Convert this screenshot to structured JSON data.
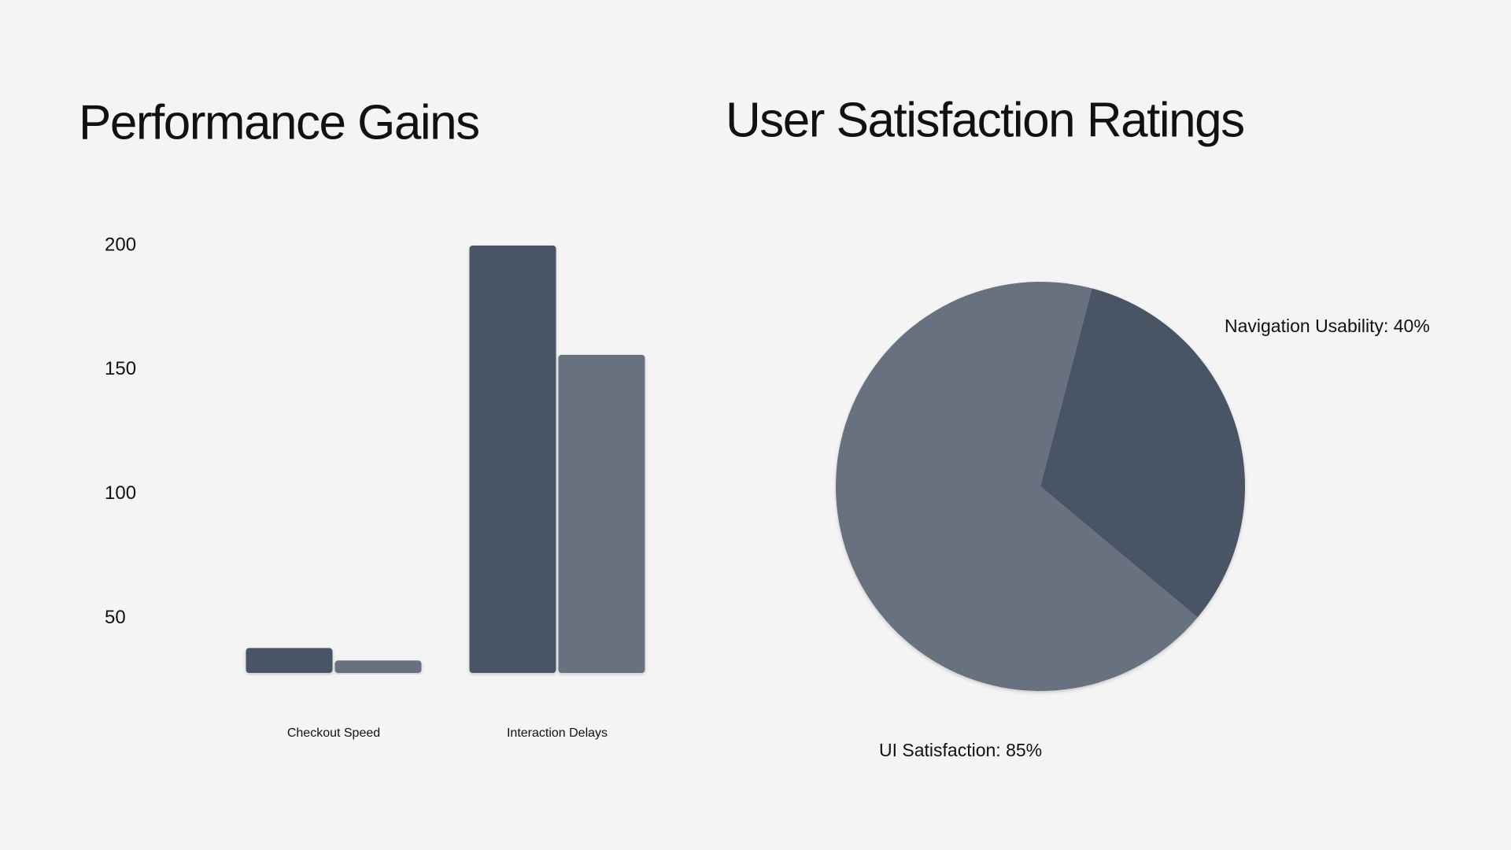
{
  "chart_data": [
    {
      "type": "bar",
      "title": "Performance Gains",
      "categories": [
        "Checkout Speed",
        "Interaction Delays"
      ],
      "series": [
        {
          "color": "#4a5565",
          "values": [
            38,
            200
          ]
        },
        {
          "color": "#68717f",
          "values": [
            33,
            156
          ]
        }
      ],
      "ylim": [
        28,
        200
      ],
      "yticks": [
        50,
        100,
        150,
        200
      ],
      "grid": false
    },
    {
      "type": "pie",
      "title": "User Satisfaction Ratings",
      "values": [
        40,
        85
      ],
      "value_labels": [
        "Navigation Usability: 40%",
        "UI Satisfaction: 85%"
      ],
      "colors": [
        "#4a5565",
        "#68717f"
      ]
    }
  ]
}
